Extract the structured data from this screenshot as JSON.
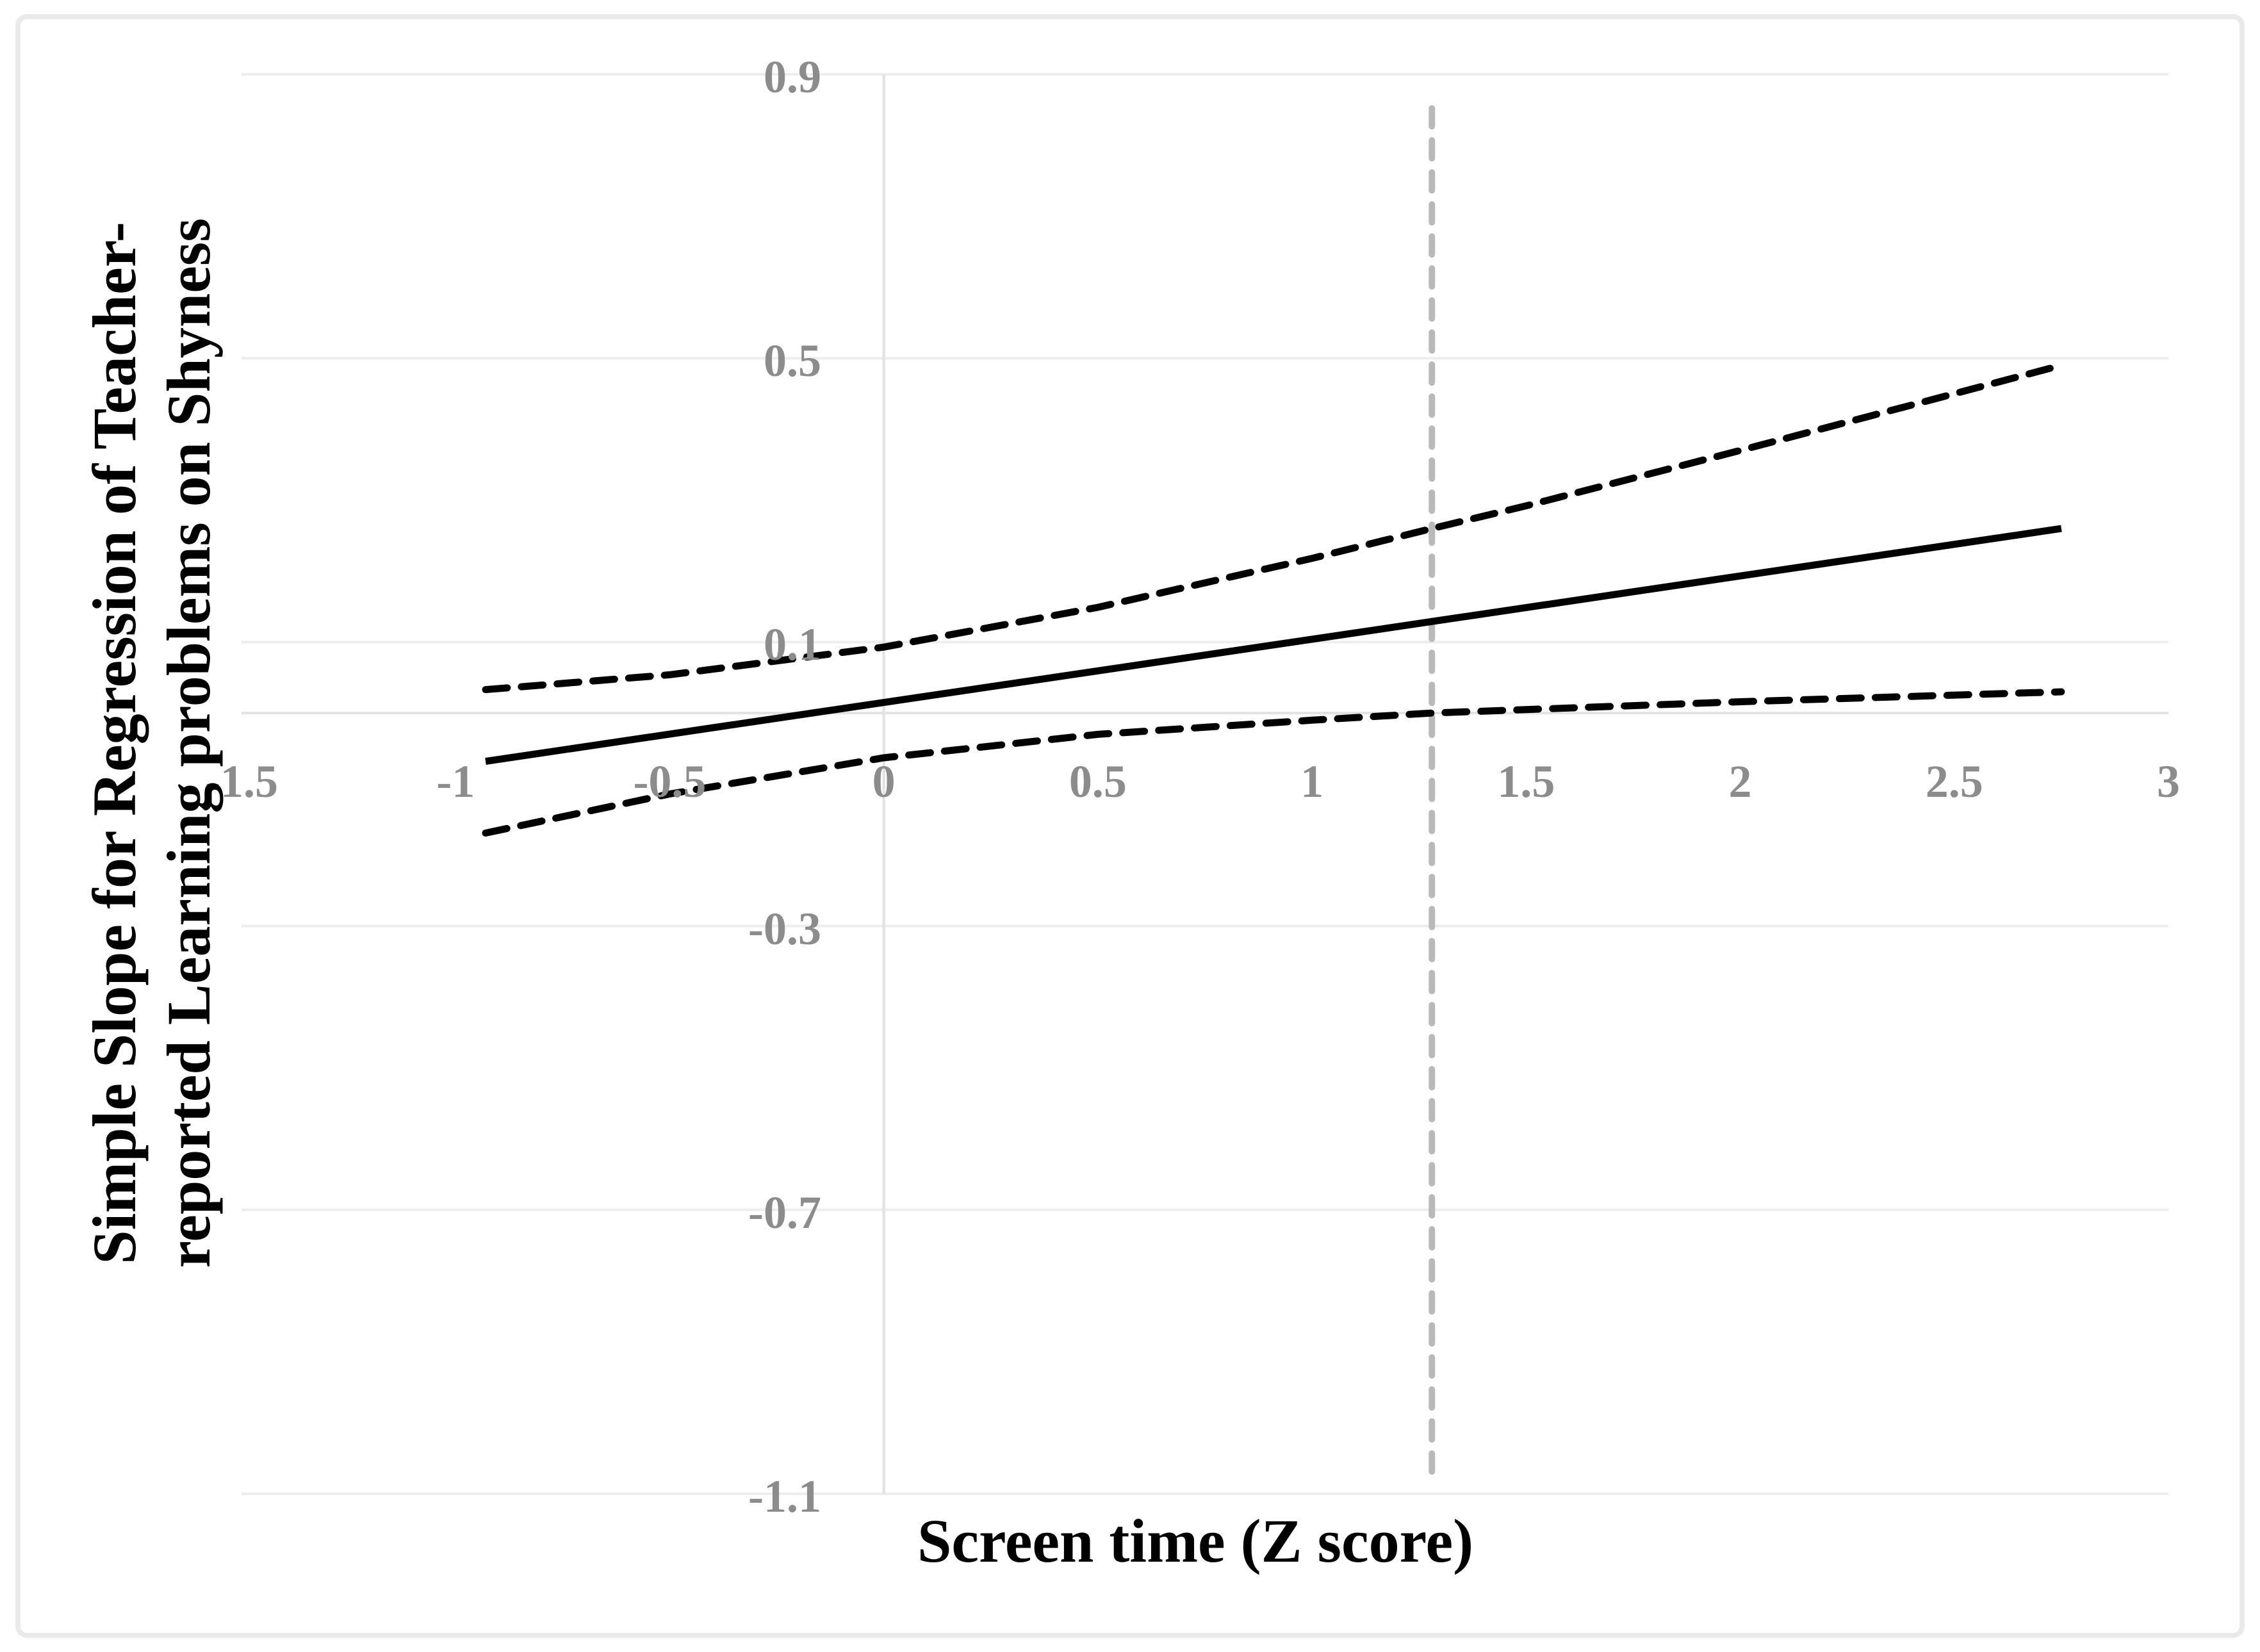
{
  "chart_data": {
    "type": "line",
    "xlabel": "Screen time (Z score)",
    "ylabel_lines": [
      "Simple Slope for Regression of Teacher-",
      "reported Learning problems on Shyness"
    ],
    "xlim": [
      -1.5,
      3
    ],
    "ylim": [
      -1.1,
      0.9
    ],
    "x_tick_values": [
      -1.5,
      -1,
      -0.5,
      0,
      0.5,
      1,
      1.5,
      2,
      2.5,
      3
    ],
    "x_tick_labels": [
      "-1.5",
      "-1",
      "-0.5",
      "0",
      "0.5",
      "1",
      "1.5",
      "2",
      "2.5",
      "3"
    ],
    "y_tick_values": [
      0.9,
      0.5,
      0.1,
      -0.3,
      -0.7,
      -1.1
    ],
    "y_tick_labels": [
      "0.9",
      "0.5",
      "0.1",
      "-0.3",
      "-0.7",
      "-1.1"
    ],
    "grid": "horizontal",
    "legend": "none",
    "series": [
      {
        "name": "simple-slope-line",
        "style": "solid",
        "color": "#000000",
        "points": [
          [
            -0.93,
            -0.068
          ],
          [
            2.75,
            0.26
          ]
        ]
      },
      {
        "name": "upper-confidence-band",
        "style": "dashed",
        "color": "#000000",
        "points": [
          [
            -0.93,
            0.033
          ],
          [
            -0.5,
            0.054
          ],
          [
            0,
            0.093
          ],
          [
            0.5,
            0.149
          ],
          [
            1,
            0.218
          ],
          [
            1.28,
            0.26
          ],
          [
            1.5,
            0.292
          ],
          [
            2,
            0.37
          ],
          [
            2.375,
            0.43
          ],
          [
            2.75,
            0.49
          ]
        ]
      },
      {
        "name": "lower-confidence-band",
        "style": "dashed",
        "color": "#000000",
        "points": [
          [
            -0.93,
            -0.169
          ],
          [
            -0.5,
            -0.114
          ],
          [
            0,
            -0.063
          ],
          [
            0.5,
            -0.03
          ],
          [
            1,
            -0.01
          ],
          [
            1.28,
            0.0
          ],
          [
            1.5,
            0.005
          ],
          [
            2,
            0.016
          ],
          [
            2.375,
            0.023
          ],
          [
            2.75,
            0.03
          ]
        ]
      }
    ],
    "reference_line": {
      "orientation": "vertical",
      "x": 1.28,
      "y_top": 0.852,
      "y_bottom": -1.085,
      "style": "dashed",
      "color": "#b9b9b9"
    },
    "colors": {
      "tick_label": "#8c8c8c",
      "axis_title": "#000000",
      "gridline": "#ededed",
      "axis_line": "#e2e2e2",
      "plot_background": "#ffffff"
    }
  }
}
